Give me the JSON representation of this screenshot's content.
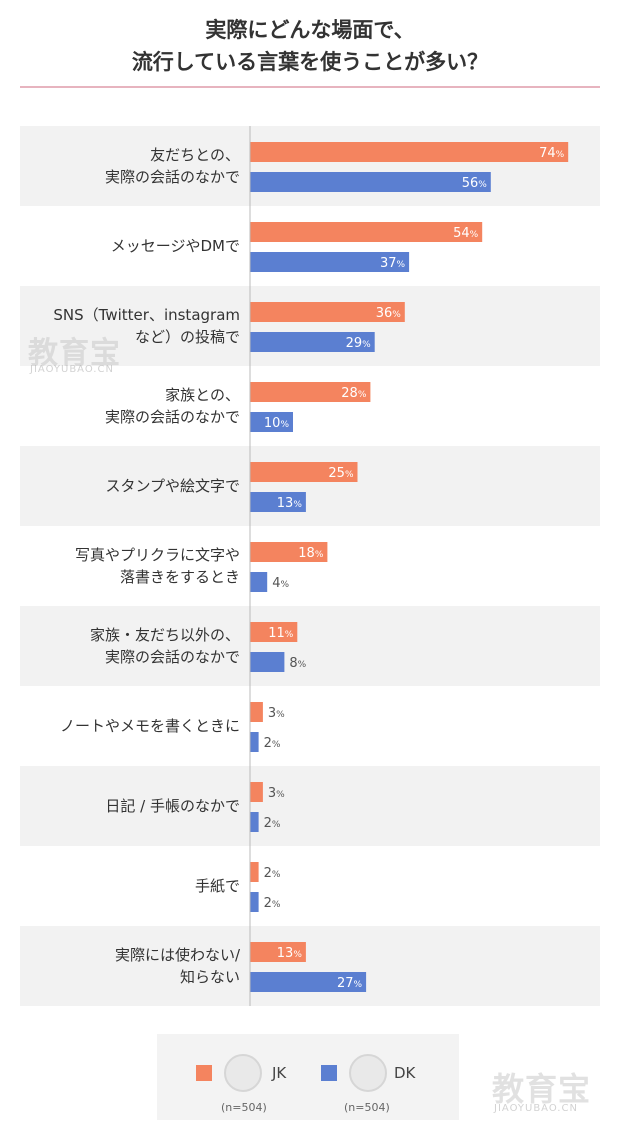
{
  "title": [
    "実際にどんな場面で、",
    "流行している言葉を使うことが多い？"
  ],
  "chart_data": {
    "type": "bar",
    "orientation": "horizontal",
    "categories": [
      [
        "友だちとの、",
        "実際の会話のなかで"
      ],
      [
        "メッセージやDMで"
      ],
      [
        "SNS（Twitter、instagram",
        "など）の投稿で"
      ],
      [
        "家族との、",
        "実際の会話のなかで"
      ],
      [
        "スタンプや絵文字で"
      ],
      [
        "写真やプリクラに文字や",
        "落書きをするとき"
      ],
      [
        "家族・友だち以外の、",
        "実際の会話のなかで"
      ],
      [
        "ノートやメモを書くときに"
      ],
      [
        "日記 / 手帳のなかで"
      ],
      [
        "手紙で"
      ],
      [
        "実際には使わない/",
        "知らない"
      ]
    ],
    "series": [
      {
        "name": "JK",
        "color": "#f4845f",
        "values": [
          74,
          54,
          36,
          28,
          25,
          18,
          11,
          3,
          3,
          2,
          13
        ]
      },
      {
        "name": "DK",
        "color": "#5b7fd1",
        "values": [
          56,
          37,
          29,
          10,
          13,
          4,
          8,
          2,
          2,
          2,
          27
        ]
      }
    ],
    "unit": "%",
    "xlim": [
      0,
      100
    ],
    "legend_position": "bottom"
  },
  "legend": [
    {
      "name": "JK",
      "n": "(n=504)",
      "color": "#f4845f",
      "icon": "girl-face-icon"
    },
    {
      "name": "DK",
      "n": "(n=504)",
      "color": "#5b7fd1",
      "icon": "boy-face-icon"
    }
  ],
  "watermark": {
    "text": "教育宝",
    "sub": "JIAOYUBAO.CN"
  }
}
